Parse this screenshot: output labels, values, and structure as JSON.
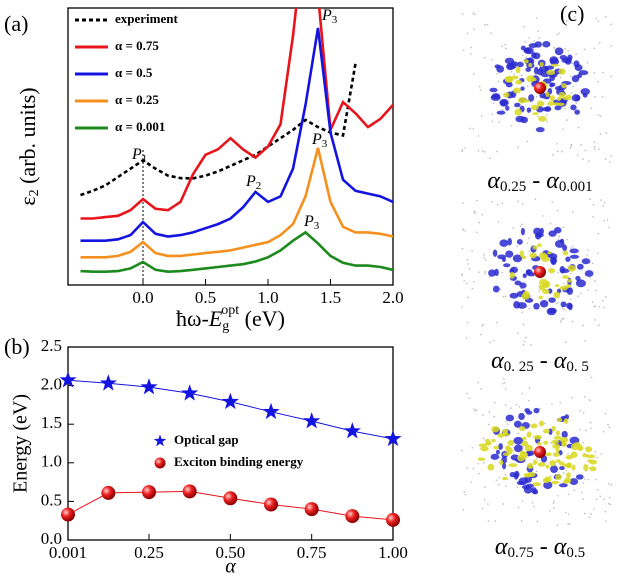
{
  "chart_data": [
    {
      "type": "line",
      "panel": "(a)",
      "ylabel": {
        "base": "ε",
        "sub": "2",
        "rest": " (arb. units)"
      },
      "xlabel": {
        "pre": "ħω-",
        "base": "E",
        "sub": "g",
        "sup": "opt",
        "rest": " (eV)"
      },
      "x": [
        -0.5,
        -0.4,
        -0.3,
        -0.2,
        -0.1,
        0,
        0.1,
        0.2,
        0.3,
        0.4,
        0.5,
        0.6,
        0.7,
        0.8,
        0.9,
        1.0,
        1.1,
        1.2,
        1.3,
        1.4,
        1.5,
        1.6,
        1.7,
        1.8,
        1.9,
        2.0
      ],
      "xlim": [
        -0.6,
        2.0
      ],
      "xticks": [
        {
          "value": 0,
          "label": "0.0"
        },
        0.5,
        {
          "value": 1,
          "label": "1.0"
        },
        1.5,
        {
          "value": 2,
          "label": "2.0"
        }
      ],
      "ylim": [
        0,
        100
      ],
      "series": [
        {
          "name": "experiment",
          "color": "#000000",
          "dashed": true,
          "values": [
            32.5,
            34,
            36,
            39,
            42,
            45,
            42,
            39.5,
            38.6,
            38.5,
            39.5,
            41,
            43,
            45,
            47,
            50,
            53,
            56,
            59.6,
            57,
            55,
            54,
            80,
            null,
            null,
            null
          ]
        },
        {
          "name": "α = 0.75",
          "color": "#e8141b",
          "values": [
            24,
            24,
            24.5,
            25,
            27,
            31,
            27.5,
            27,
            30,
            40,
            47,
            49,
            53,
            49,
            46,
            50,
            58,
            90,
            130,
            105,
            56,
            66,
            62,
            57,
            60,
            65
          ]
        },
        {
          "name": "α = 0.5",
          "color": "#1414e0",
          "values": [
            16,
            16,
            16,
            16.5,
            18,
            22.7,
            18.5,
            17.5,
            18,
            19,
            20.5,
            22,
            24,
            28,
            33.6,
            30,
            32,
            42,
            65,
            92.8,
            55,
            38,
            34,
            33,
            32,
            30
          ]
        },
        {
          "name": "α = 0.25",
          "color": "#f5901e",
          "values": [
            10,
            10,
            10,
            10.5,
            12,
            15.5,
            11.5,
            10.5,
            10.5,
            11,
            11.5,
            12,
            12.5,
            13.5,
            14.5,
            15.5,
            18,
            22,
            32,
            49.5,
            30,
            21,
            19,
            19,
            18.5,
            17.5
          ]
        },
        {
          "name": "α = 0.001",
          "color": "#1c8a1c",
          "values": [
            5,
            4.8,
            4.8,
            5,
            6,
            8.3,
            5.5,
            4.8,
            5,
            5.5,
            6,
            6.5,
            7,
            7.5,
            8.5,
            10,
            12.5,
            16,
            19,
            15,
            10.5,
            8,
            7,
            7,
            6.5,
            5.5
          ]
        }
      ],
      "annotations": [
        {
          "text": "P",
          "sub": "1"
        },
        {
          "text": "P",
          "sub": "2"
        },
        {
          "text": "P",
          "sub": "3"
        },
        {
          "text": "P",
          "sub": "3"
        },
        {
          "text": "P",
          "sub": "3"
        }
      ]
    },
    {
      "type": "line",
      "panel": "(b)",
      "ylabel": "Energy (eV)",
      "xlabel": "α",
      "x": [
        0.001,
        0.125,
        0.25,
        0.375,
        0.5,
        0.625,
        0.75,
        0.875,
        1.0
      ],
      "xlim": [
        0.001,
        1.0
      ],
      "xticks": [
        0.001,
        0.25,
        {
          "value": 0.5,
          "label": "0.50"
        },
        0.75,
        {
          "value": 1,
          "label": "1.00"
        }
      ],
      "ylim": [
        0,
        2.5
      ],
      "yticks": [
        {
          "value": 0,
          "label": "0.0"
        },
        0.5,
        {
          "value": 1,
          "label": "1.0"
        },
        1.5,
        {
          "value": 2,
          "label": "2.0"
        },
        2.5
      ],
      "series": [
        {
          "name": "Optical gap",
          "color": "#1414e0",
          "marker": "star",
          "values": [
            2.07,
            2.03,
            1.98,
            1.9,
            1.79,
            1.66,
            1.54,
            1.41,
            1.31
          ]
        },
        {
          "name": "Exciton binding energy",
          "color": "#e8141b",
          "marker": "sphere",
          "values": [
            0.33,
            0.61,
            0.62,
            0.63,
            0.54,
            0.46,
            0.4,
            0.31,
            0.26
          ]
        }
      ]
    }
  ],
  "panel_c": {
    "label": "(c)",
    "captions": [
      [
        "α",
        "0.25",
        " - ",
        "α",
        "0.001"
      ],
      [
        "α",
        "0. 25",
        " - ",
        "α",
        "0. 5"
      ],
      [
        "α",
        "0.75",
        " - ",
        "α",
        "0.5"
      ]
    ]
  }
}
